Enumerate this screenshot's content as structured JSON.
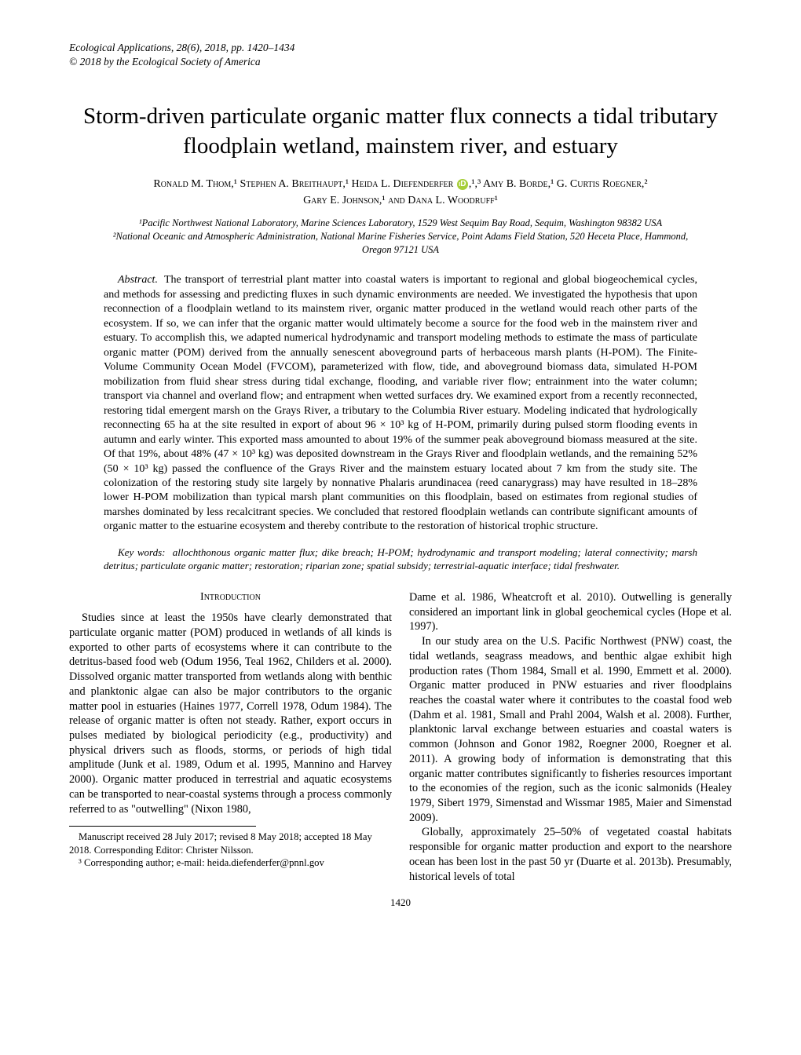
{
  "running_head": {
    "journal": "Ecological Applications",
    "citation": ", 28(6), 2018, pp. 1420–1434",
    "copyright": "© 2018 by the Ecological Society of America"
  },
  "title": "Storm-driven particulate organic matter flux connects a tidal tributary floodplain wetland, mainstem river, and estuary",
  "authors": {
    "line1_before_orcid": "Ronald M. Thom,¹ Stephen A. Breithaupt,¹ Heida L. Diefenderfer",
    "line1_after_orcid": ",¹,³ Amy B. Borde,¹ G. Curtis Roegner,²",
    "line2": "Gary E. Johnson,¹ and Dana L. Woodruff¹",
    "orcid_glyph": "iD"
  },
  "affiliations": {
    "a1": "¹Pacific Northwest National Laboratory, Marine Sciences Laboratory, 1529 West Sequim Bay Road, Sequim, Washington 98382 USA",
    "a2": "²National Oceanic and Atmospheric Administration, National Marine Fisheries Service, Point Adams Field Station, 520 Heceta Place, Hammond, Oregon 97121 USA"
  },
  "abstract": {
    "label": "Abstract.",
    "text": "The transport of terrestrial plant matter into coastal waters is important to regional and global biogeochemical cycles, and methods for assessing and predicting fluxes in such dynamic environments are needed. We investigated the hypothesis that upon reconnection of a floodplain wetland to its mainstem river, organic matter produced in the wetland would reach other parts of the ecosystem. If so, we can infer that the organic matter would ultimately become a source for the food web in the mainstem river and estuary. To accomplish this, we adapted numerical hydrodynamic and transport modeling methods to estimate the mass of particulate organic matter (POM) derived from the annually senescent aboveground parts of herbaceous marsh plants (H-POM). The Finite-Volume Community Ocean Model (FVCOM), parameterized with flow, tide, and aboveground biomass data, simulated H-POM mobilization from fluid shear stress during tidal exchange, flooding, and variable river flow; entrainment into the water column; transport via channel and overland flow; and entrapment when wetted surfaces dry. We examined export from a recently reconnected, restoring tidal emergent marsh on the Grays River, a tributary to the Columbia River estuary. Modeling indicated that hydrologically reconnecting 65 ha at the site resulted in export of about 96 × 10³ kg of H-POM, primarily during pulsed storm flooding events in autumn and early winter. This exported mass amounted to about 19% of the summer peak aboveground biomass measured at the site. Of that 19%, about 48% (47 × 10³ kg) was deposited downstream in the Grays River and floodplain wetlands, and the remaining 52% (50 × 10³ kg) passed the confluence of the Grays River and the mainstem estuary located about 7 km from the study site. The colonization of the restoring study site largely by nonnative Phalaris arundinacea (reed canarygrass) may have resulted in 18–28% lower H-POM mobilization than typical marsh plant communities on this floodplain, based on estimates from regional studies of marshes dominated by less recalcitrant species. We concluded that restored floodplain wetlands can contribute significant amounts of organic matter to the estuarine ecosystem and thereby contribute to the restoration of historical trophic structure."
  },
  "keywords": {
    "label": "Key words:",
    "text": "allochthonous organic matter flux; dike breach; H-POM; hydrodynamic and transport modeling; lateral connectivity; marsh detritus; particulate organic matter; restoration; riparian zone; spatial subsidy; terrestrial-aquatic interface; tidal freshwater."
  },
  "section_head": "Introduction",
  "body": {
    "left_p1": "Studies since at least the 1950s have clearly demonstrated that particulate organic matter (POM) produced in wetlands of all kinds is exported to other parts of ecosystems where it can contribute to the detritus-based food web (Odum 1956, Teal 1962, Childers et al. 2000). Dissolved organic matter transported from wetlands along with benthic and planktonic algae can also be major contributors to the organic matter pool in estuaries (Haines 1977, Correll 1978, Odum 1984). The release of organic matter is often not steady. Rather, export occurs in pulses mediated by biological periodicity (e.g., productivity) and physical drivers such as floods, storms, or periods of high tidal amplitude (Junk et al. 1989, Odum et al. 1995, Mannino and Harvey 2000). Organic matter produced in terrestrial and aquatic ecosystems can be transported to near-coastal systems through a process commonly referred to as \"outwelling\" (Nixon 1980,",
    "right_p1": "Dame et al. 1986, Wheatcroft et al. 2010). Outwelling is generally considered an important link in global geochemical cycles (Hope et al. 1997).",
    "right_p2": "In our study area on the U.S. Pacific Northwest (PNW) coast, the tidal wetlands, seagrass meadows, and benthic algae exhibit high production rates (Thom 1984, Small et al. 1990, Emmett et al. 2000). Organic matter produced in PNW estuaries and river floodplains reaches the coastal water where it contributes to the coastal food web (Dahm et al. 1981, Small and Prahl 2004, Walsh et al. 2008). Further, planktonic larval exchange between estuaries and coastal waters is common (Johnson and Gonor 1982, Roegner 2000, Roegner et al. 2011). A growing body of information is demonstrating that this organic matter contributes significantly to fisheries resources important to the economies of the region, such as the iconic salmonids (Healey 1979, Sibert 1979, Simenstad and Wissmar 1985, Maier and Simenstad 2009).",
    "right_p3": "Globally, approximately 25–50% of vegetated coastal habitats responsible for organic matter production and export to the nearshore ocean has been lost in the past 50 yr (Duarte et al. 2013b). Presumably, historical levels of total"
  },
  "footnotes": {
    "f1": "Manuscript received 28 July 2017; revised 8 May 2018; accepted 18 May 2018. Corresponding Editor: Christer Nilsson.",
    "f2": "³ Corresponding author; e-mail: heida.diefenderfer@pnnl.gov"
  },
  "pagenum": "1420"
}
